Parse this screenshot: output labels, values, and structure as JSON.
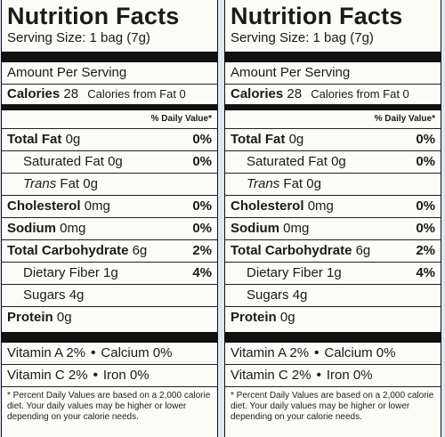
{
  "panels": [
    {
      "title": "Nutrition Facts",
      "serving": "Serving Size: 1 bag (7g)",
      "amount_per_serving": "Amount Per Serving",
      "calories_label": "Calories",
      "calories_value": "28",
      "calories_fat": "Calories from Fat 0",
      "dv_header": "% Daily Value*",
      "nutrients": [
        {
          "name": "Total Fat",
          "amount": "0g",
          "pct": "0%"
        },
        {
          "name": "Saturated Fat",
          "amount": "0g",
          "pct": "0%"
        },
        {
          "name": "Trans",
          "amount": "Fat 0g",
          "pct": ""
        },
        {
          "name": "Cholesterol",
          "amount": "0mg",
          "pct": "0%"
        },
        {
          "name": "Sodium",
          "amount": "0mg",
          "pct": "0%"
        },
        {
          "name": "Total Carbohydrate",
          "amount": "6g",
          "pct": "2%"
        },
        {
          "name": "Dietary Fiber",
          "amount": "1g",
          "pct": "4%"
        },
        {
          "name": "Sugars",
          "amount": "4g",
          "pct": ""
        },
        {
          "name": "Protein",
          "amount": "0g",
          "pct": ""
        }
      ],
      "vitamins": [
        {
          "a": "Vitamin A 2%",
          "b": "Calcium 0%"
        },
        {
          "a": "Vitamin C 2%",
          "b": "Iron 0%"
        }
      ],
      "footnote": "* Percent Daily Values are based on a 2,000 calorie diet. Your daily values may be higher or lower depending on your calorie needs."
    },
    {
      "title": "Nutrition Facts",
      "serving": "Serving Size: 1 bag (7g)",
      "amount_per_serving": "Amount Per Serving",
      "calories_label": "Calories",
      "calories_value": "28",
      "calories_fat": "Calories from Fat 0",
      "dv_header": "% Daily Value*",
      "nutrients": [
        {
          "name": "Total Fat",
          "amount": "0g",
          "pct": "0%"
        },
        {
          "name": "Saturated Fat",
          "amount": "0g",
          "pct": "0%"
        },
        {
          "name": "Trans",
          "amount": "Fat 0g",
          "pct": ""
        },
        {
          "name": "Cholesterol",
          "amount": "0mg",
          "pct": "0%"
        },
        {
          "name": "Sodium",
          "amount": "0mg",
          "pct": "0%"
        },
        {
          "name": "Total Carbohydrate",
          "amount": "6g",
          "pct": "2%"
        },
        {
          "name": "Dietary Fiber",
          "amount": "1g",
          "pct": "4%"
        },
        {
          "name": "Sugars",
          "amount": "4g",
          "pct": ""
        },
        {
          "name": "Protein",
          "amount": "0g",
          "pct": ""
        }
      ],
      "vitamins": [
        {
          "a": "Vitamin A 2%",
          "b": "Calcium 0%"
        },
        {
          "a": "Vitamin C 2%",
          "b": "Iron 0%"
        }
      ],
      "footnote": "* Percent Daily Values are based on a 2,000 calorie diet. Your daily values may be higher or lower depending on your calorie needs."
    }
  ],
  "colors": {
    "background": "#dfe6ee",
    "label_bg": "#fbfbf8",
    "ink": "#111111"
  }
}
